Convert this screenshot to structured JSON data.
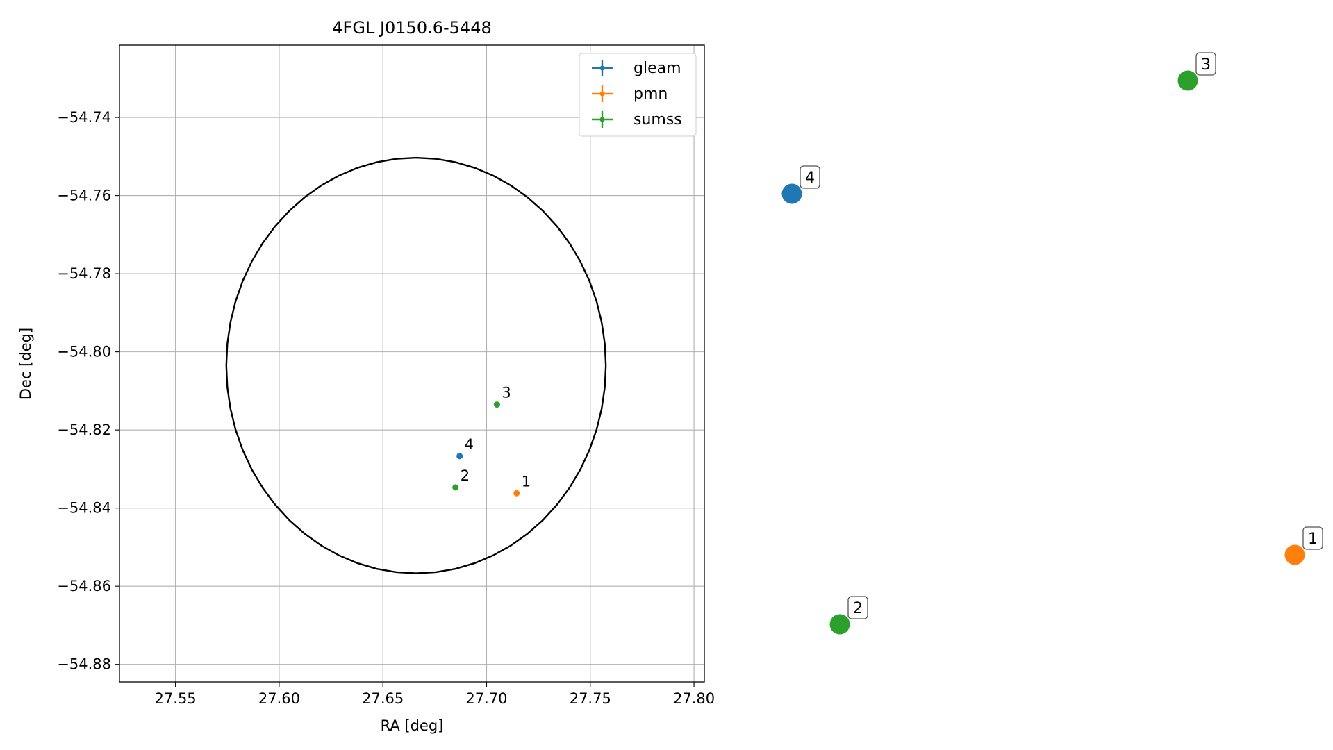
{
  "chart_data": {
    "type": "scatter",
    "title": "4FGL J0150.6-5448",
    "xlabel": "RA [deg]",
    "ylabel": "Dec [deg]",
    "xlim": [
      27.523,
      27.805
    ],
    "ylim": [
      -54.8845,
      -54.7215
    ],
    "xticks": [
      27.55,
      27.6,
      27.65,
      27.7,
      27.75,
      27.8
    ],
    "xtick_labels": [
      "27.55",
      "27.60",
      "27.65",
      "27.70",
      "27.75",
      "27.80"
    ],
    "yticks": [
      -54.74,
      -54.76,
      -54.78,
      -54.8,
      -54.82,
      -54.84,
      -54.86,
      -54.88
    ],
    "ytick_labels": [
      "−54.74",
      "−54.76",
      "−54.78",
      "−54.80",
      "−54.82",
      "−54.84",
      "−54.86",
      "−54.88"
    ],
    "grid": true,
    "legend_position": "top-right",
    "ellipse": {
      "center": [
        27.666,
        -54.8035
      ],
      "ra_semi_axis": 0.0915,
      "dec_semi_axis": 0.0532,
      "color": "#000000"
    },
    "series": [
      {
        "name": "gleam",
        "color": "#1f77b4",
        "points": [
          {
            "label": "4",
            "ra": 27.687,
            "dec": -54.8267
          }
        ]
      },
      {
        "name": "pmn",
        "color": "#ff7f0e",
        "points": [
          {
            "label": "1",
            "ra": 27.7145,
            "dec": -54.8362
          }
        ]
      },
      {
        "name": "sumss",
        "color": "#2ca02c",
        "points": [
          {
            "label": "2",
            "ra": 27.685,
            "dec": -54.8347
          },
          {
            "label": "3",
            "ra": 27.705,
            "dec": -54.8135
          }
        ]
      }
    ],
    "side_panel": [
      {
        "label": "4",
        "color": "#1f77b4"
      },
      {
        "label": "3",
        "color": "#2ca02c"
      },
      {
        "label": "1",
        "color": "#ff7f0e"
      },
      {
        "label": "2",
        "color": "#2ca02c"
      }
    ]
  }
}
